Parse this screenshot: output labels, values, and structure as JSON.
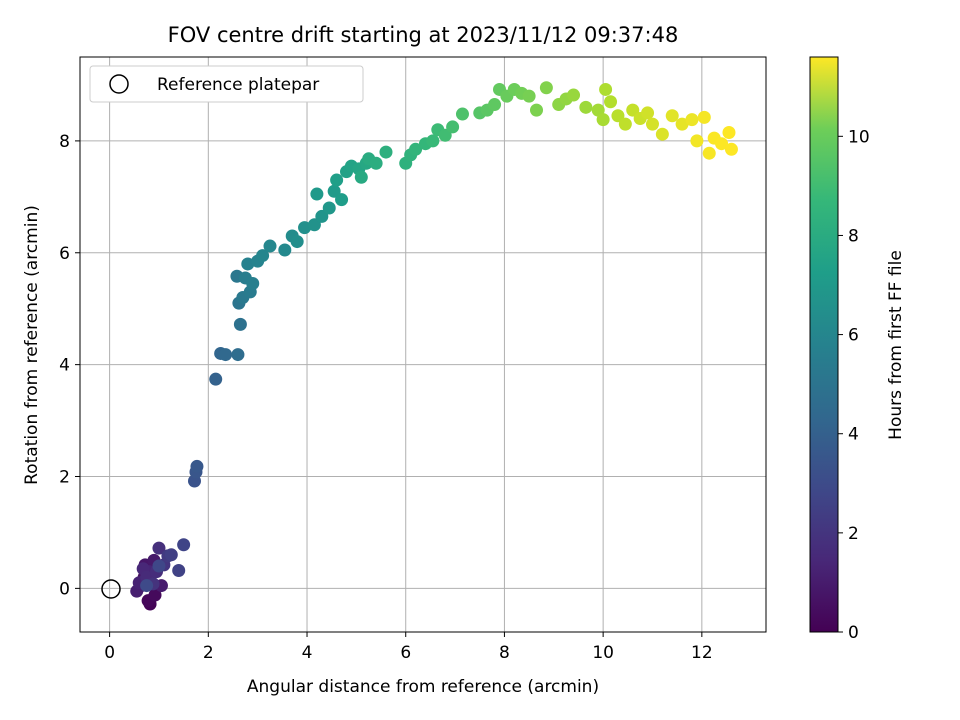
{
  "chart_data": {
    "type": "scatter",
    "title": "FOV centre drift starting at 2023/11/12 09:37:48",
    "xlabel": "Angular distance from reference (arcmin)",
    "ylabel": "Rotation from reference (arcmin)",
    "xlim": [
      -0.6,
      13.3
    ],
    "ylim": [
      -0.78,
      9.5
    ],
    "xticks": [
      0,
      2,
      4,
      6,
      8,
      10,
      12
    ],
    "yticks": [
      0,
      2,
      4,
      6,
      8
    ],
    "grid": true,
    "legend": {
      "placement": "top-left",
      "entries": [
        "Reference platepar"
      ]
    },
    "reference_point": {
      "x": 0,
      "y": 0,
      "label": "Reference platepar"
    },
    "colorbar": {
      "label": "Hours from first FF file",
      "colormap": "viridis",
      "range": [
        0,
        11.6
      ],
      "ticks": [
        0,
        2,
        4,
        6,
        8,
        10
      ]
    },
    "series": [
      {
        "points": [
          {
            "x": 0.82,
            "y": -0.28,
            "c": 0.1
          },
          {
            "x": 0.78,
            "y": -0.22,
            "c": 0.2
          },
          {
            "x": 0.92,
            "y": -0.12,
            "c": 0.3
          },
          {
            "x": 0.65,
            "y": 0.05,
            "c": 0.4
          },
          {
            "x": 0.7,
            "y": 0.2,
            "c": 0.5
          },
          {
            "x": 0.85,
            "y": 0.1,
            "c": 0.6
          },
          {
            "x": 0.72,
            "y": 0.42,
            "c": 0.7
          },
          {
            "x": 0.9,
            "y": 0.5,
            "c": 0.8
          },
          {
            "x": 1.05,
            "y": 0.05,
            "c": 0.9
          },
          {
            "x": 0.55,
            "y": -0.05,
            "c": 1.0
          },
          {
            "x": 0.6,
            "y": 0.1,
            "c": 1.1
          },
          {
            "x": 0.8,
            "y": 0.3,
            "c": 1.2
          },
          {
            "x": 0.68,
            "y": 0.35,
            "c": 1.3
          },
          {
            "x": 0.75,
            "y": 0.2,
            "c": 1.4
          },
          {
            "x": 0.95,
            "y": 0.3,
            "c": 1.5
          },
          {
            "x": 1.0,
            "y": 0.72,
            "c": 1.6
          },
          {
            "x": 0.88,
            "y": 0.08,
            "c": 1.7
          },
          {
            "x": 1.1,
            "y": 0.42,
            "c": 1.8
          },
          {
            "x": 1.18,
            "y": 0.58,
            "c": 2.0
          },
          {
            "x": 1.25,
            "y": 0.6,
            "c": 2.2
          },
          {
            "x": 1.4,
            "y": 0.32,
            "c": 2.3
          },
          {
            "x": 1.5,
            "y": 0.78,
            "c": 2.4
          },
          {
            "x": 1.0,
            "y": 0.4,
            "c": 2.5
          },
          {
            "x": 0.75,
            "y": 0.05,
            "c": 2.6
          },
          {
            "x": 1.72,
            "y": 1.92,
            "c": 3.0
          },
          {
            "x": 1.75,
            "y": 2.08,
            "c": 3.1
          },
          {
            "x": 1.77,
            "y": 2.18,
            "c": 3.2
          },
          {
            "x": 2.15,
            "y": 3.74,
            "c": 3.6
          },
          {
            "x": 2.25,
            "y": 4.2,
            "c": 3.8
          },
          {
            "x": 2.35,
            "y": 4.18,
            "c": 3.9
          },
          {
            "x": 2.6,
            "y": 4.18,
            "c": 4.1
          },
          {
            "x": 2.65,
            "y": 4.72,
            "c": 4.3
          },
          {
            "x": 2.62,
            "y": 5.1,
            "c": 4.5
          },
          {
            "x": 2.58,
            "y": 5.58,
            "c": 4.6
          },
          {
            "x": 2.7,
            "y": 5.2,
            "c": 4.7
          },
          {
            "x": 2.85,
            "y": 5.3,
            "c": 4.8
          },
          {
            "x": 2.75,
            "y": 5.55,
            "c": 4.9
          },
          {
            "x": 2.9,
            "y": 5.45,
            "c": 5.0
          },
          {
            "x": 2.8,
            "y": 5.8,
            "c": 5.1
          },
          {
            "x": 3.0,
            "y": 5.85,
            "c": 5.2
          },
          {
            "x": 3.1,
            "y": 5.95,
            "c": 5.3
          },
          {
            "x": 3.25,
            "y": 6.12,
            "c": 5.4
          },
          {
            "x": 3.55,
            "y": 6.05,
            "c": 5.5
          },
          {
            "x": 3.7,
            "y": 6.3,
            "c": 5.6
          },
          {
            "x": 3.8,
            "y": 6.2,
            "c": 5.7
          },
          {
            "x": 3.95,
            "y": 6.45,
            "c": 5.8
          },
          {
            "x": 4.15,
            "y": 6.5,
            "c": 5.9
          },
          {
            "x": 4.3,
            "y": 6.65,
            "c": 6.0
          },
          {
            "x": 4.45,
            "y": 6.8,
            "c": 6.1
          },
          {
            "x": 4.2,
            "y": 7.05,
            "c": 6.2
          },
          {
            "x": 4.55,
            "y": 7.1,
            "c": 6.3
          },
          {
            "x": 4.7,
            "y": 6.95,
            "c": 6.4
          },
          {
            "x": 4.6,
            "y": 7.3,
            "c": 6.5
          },
          {
            "x": 4.8,
            "y": 7.45,
            "c": 6.6
          },
          {
            "x": 4.9,
            "y": 7.55,
            "c": 6.7
          },
          {
            "x": 5.05,
            "y": 7.5,
            "c": 6.8
          },
          {
            "x": 5.2,
            "y": 7.6,
            "c": 6.9
          },
          {
            "x": 5.1,
            "y": 7.35,
            "c": 7.0
          },
          {
            "x": 5.25,
            "y": 7.68,
            "c": 7.1
          },
          {
            "x": 5.4,
            "y": 7.6,
            "c": 7.2
          },
          {
            "x": 5.6,
            "y": 7.8,
            "c": 7.3
          },
          {
            "x": 6.0,
            "y": 7.6,
            "c": 7.4
          },
          {
            "x": 6.1,
            "y": 7.75,
            "c": 7.5
          },
          {
            "x": 6.2,
            "y": 7.85,
            "c": 7.6
          },
          {
            "x": 6.4,
            "y": 7.95,
            "c": 7.7
          },
          {
            "x": 6.55,
            "y": 8.0,
            "c": 7.8
          },
          {
            "x": 6.65,
            "y": 8.2,
            "c": 7.9
          },
          {
            "x": 6.8,
            "y": 8.1,
            "c": 8.0
          },
          {
            "x": 6.95,
            "y": 8.25,
            "c": 8.1
          },
          {
            "x": 7.15,
            "y": 8.48,
            "c": 8.3
          },
          {
            "x": 7.5,
            "y": 8.5,
            "c": 8.5
          },
          {
            "x": 7.65,
            "y": 8.55,
            "c": 8.6
          },
          {
            "x": 7.8,
            "y": 8.65,
            "c": 8.7
          },
          {
            "x": 7.9,
            "y": 8.92,
            "c": 8.8
          },
          {
            "x": 8.05,
            "y": 8.8,
            "c": 8.9
          },
          {
            "x": 8.2,
            "y": 8.92,
            "c": 9.0
          },
          {
            "x": 8.35,
            "y": 8.85,
            "c": 9.1
          },
          {
            "x": 8.5,
            "y": 8.8,
            "c": 9.2
          },
          {
            "x": 8.65,
            "y": 8.55,
            "c": 9.3
          },
          {
            "x": 8.85,
            "y": 8.95,
            "c": 9.4
          },
          {
            "x": 9.1,
            "y": 8.65,
            "c": 9.6
          },
          {
            "x": 9.25,
            "y": 8.75,
            "c": 9.7
          },
          {
            "x": 9.4,
            "y": 8.82,
            "c": 9.8
          },
          {
            "x": 9.65,
            "y": 8.6,
            "c": 9.9
          },
          {
            "x": 9.9,
            "y": 8.55,
            "c": 10.0
          },
          {
            "x": 10.0,
            "y": 8.38,
            "c": 10.1
          },
          {
            "x": 10.05,
            "y": 8.92,
            "c": 10.2
          },
          {
            "x": 10.15,
            "y": 8.7,
            "c": 10.3
          },
          {
            "x": 10.3,
            "y": 8.45,
            "c": 10.4
          },
          {
            "x": 10.45,
            "y": 8.3,
            "c": 10.5
          },
          {
            "x": 10.6,
            "y": 8.55,
            "c": 10.6
          },
          {
            "x": 10.75,
            "y": 8.4,
            "c": 10.7
          },
          {
            "x": 10.9,
            "y": 8.5,
            "c": 10.8
          },
          {
            "x": 11.0,
            "y": 8.3,
            "c": 10.9
          },
          {
            "x": 11.2,
            "y": 8.12,
            "c": 11.0
          },
          {
            "x": 11.4,
            "y": 8.45,
            "c": 11.1
          },
          {
            "x": 11.6,
            "y": 8.3,
            "c": 11.2
          },
          {
            "x": 11.8,
            "y": 8.38,
            "c": 11.3
          },
          {
            "x": 11.9,
            "y": 8.0,
            "c": 11.4
          },
          {
            "x": 12.05,
            "y": 8.42,
            "c": 11.45
          },
          {
            "x": 12.15,
            "y": 7.78,
            "c": 11.5
          },
          {
            "x": 12.25,
            "y": 8.05,
            "c": 11.55
          },
          {
            "x": 12.4,
            "y": 7.95,
            "c": 11.58
          },
          {
            "x": 12.55,
            "y": 8.15,
            "c": 11.6
          },
          {
            "x": 12.6,
            "y": 7.85,
            "c": 11.6
          }
        ]
      }
    ]
  }
}
